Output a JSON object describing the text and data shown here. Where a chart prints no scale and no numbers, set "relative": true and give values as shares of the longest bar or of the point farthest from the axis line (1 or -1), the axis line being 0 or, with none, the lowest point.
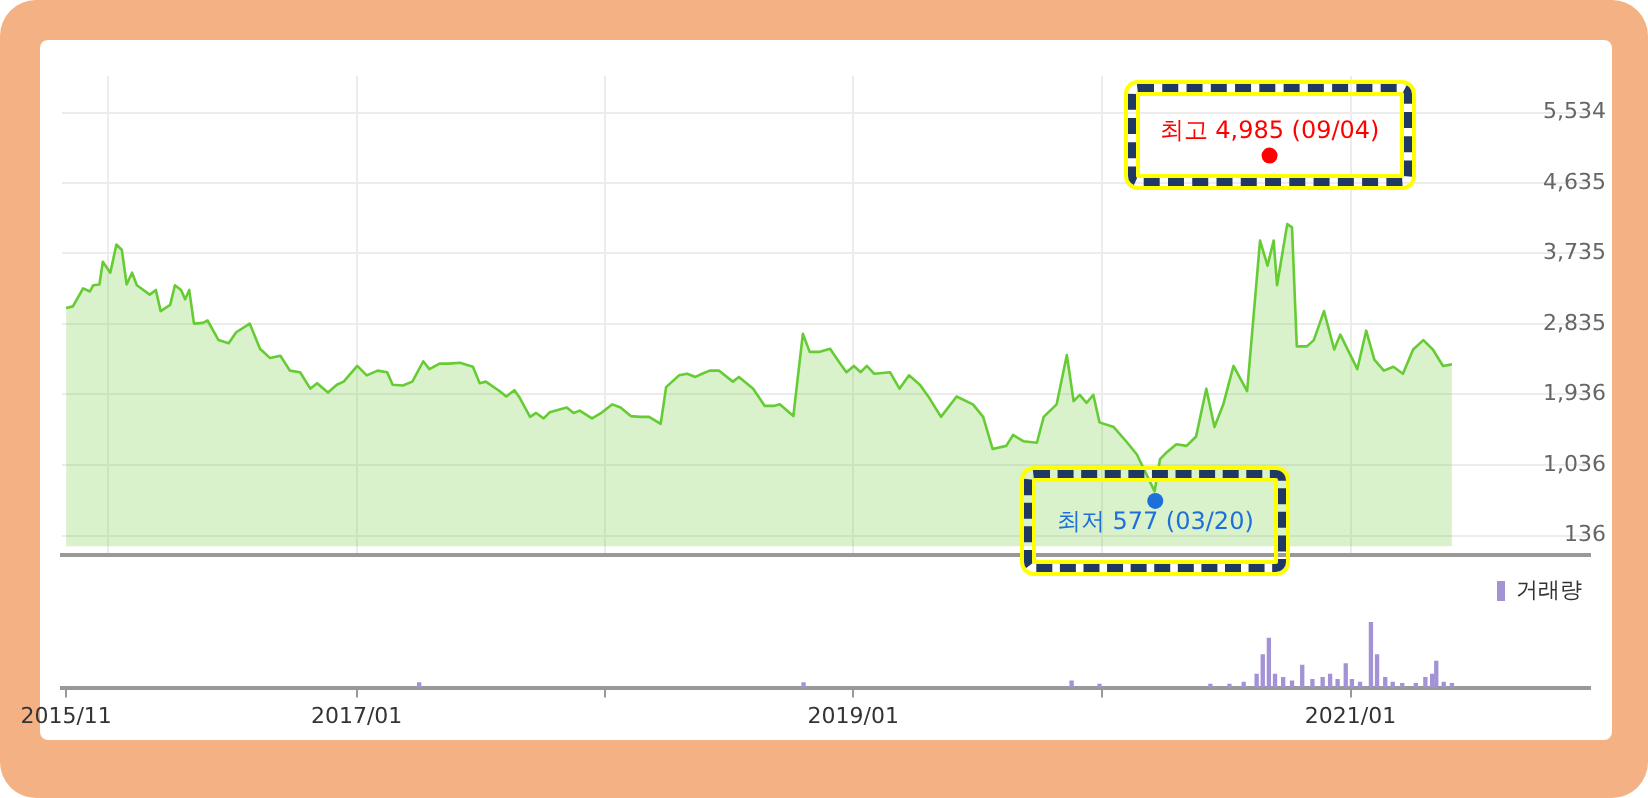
{
  "chart_data": [
    {
      "type": "area",
      "xlim": [
        "2015-10-26",
        "2021-12-19"
      ],
      "ylim": [
        -110,
        6000
      ],
      "xticks": [
        {
          "value": "2016-01",
          "label": null
        },
        {
          "value": "2017-01",
          "label": null
        },
        {
          "value": "2018-01",
          "label": null
        },
        {
          "value": "2019-01",
          "label": null
        },
        {
          "value": "2020-01",
          "label": null
        },
        {
          "value": "2021-01",
          "label": null
        }
      ],
      "yticks": [
        {
          "value": 136,
          "label": "136"
        },
        {
          "value": 1036,
          "label": "1,036"
        },
        {
          "value": 1936,
          "label": "1,936"
        },
        {
          "value": 2835,
          "label": "2,835"
        },
        {
          "value": 3735,
          "label": "3,735"
        },
        {
          "value": 4635,
          "label": "4,635"
        },
        {
          "value": 5534,
          "label": "5,534"
        }
      ],
      "tick_labels": "y",
      "grid": true,
      "legend": false,
      "marker": "none",
      "annotations": [
        {
          "text": "최고 4,985 (09/04)",
          "x": "2020-09-04",
          "y": 4985
        },
        {
          "text": "최저 577 (03/20)",
          "x": "2020-03-20",
          "y": 577
        }
      ],
      "series": [
        {
          "type": "scatter",
          "marker": "circle",
          "colors": [
            "#ff0000",
            "#1e6fd9"
          ],
          "x": [
            "2020-09-04",
            "2020-03-20"
          ],
          "values": [
            4985,
            577
          ]
        },
        {
          "color": "#66cc33",
          "x": [
            "2015-11-01",
            "2015-11-11",
            "2015-11-26",
            "2015-12-06",
            "2015-12-11",
            "2015-12-20",
            "2015-12-25",
            "2016-01-05",
            "2016-01-14",
            "2016-01-22",
            "2016-01-29",
            "2016-02-06",
            "2016-02-13",
            "2016-03-03",
            "2016-03-12",
            "2016-03-19",
            "2016-04-02",
            "2016-04-09",
            "2016-04-18",
            "2016-04-24",
            "2016-04-30",
            "2016-05-07",
            "2016-05-20",
            "2016-05-27",
            "2016-06-12",
            "2016-06-27",
            "2016-07-08",
            "2016-07-28",
            "2016-08-12",
            "2016-08-27",
            "2016-09-11",
            "2016-09-25",
            "2016-10-10",
            "2016-10-25",
            "2016-11-04",
            "2016-11-20",
            "2016-12-03",
            "2016-12-13",
            "2017-01-02",
            "2017-01-16",
            "2017-02-01",
            "2017-02-15",
            "2017-02-23",
            "2017-03-10",
            "2017-03-24",
            "2017-04-09",
            "2017-04-18",
            "2017-05-03",
            "2017-05-17",
            "2017-06-02",
            "2017-06-21",
            "2017-07-01",
            "2017-07-10",
            "2017-07-30",
            "2017-08-09",
            "2017-08-21",
            "2017-08-29",
            "2017-09-13",
            "2017-09-22",
            "2017-10-03",
            "2017-10-12",
            "2017-11-06",
            "2017-11-16",
            "2017-11-25",
            "2017-12-13",
            "2017-12-25",
            "2018-01-12",
            "2018-01-24",
            "2018-02-08",
            "2018-02-22",
            "2018-03-07",
            "2018-03-24",
            "2018-04-01",
            "2018-04-20",
            "2018-05-02",
            "2018-05-14",
            "2018-05-24",
            "2018-06-04",
            "2018-06-18",
            "2018-07-08",
            "2018-07-17",
            "2018-08-07",
            "2018-08-24",
            "2018-09-06",
            "2018-09-15",
            "2018-10-05",
            "2018-10-19",
            "2018-10-29",
            "2018-11-13",
            "2018-11-28",
            "2018-12-12",
            "2018-12-22",
            "2019-01-02",
            "2019-01-12",
            "2019-01-21",
            "2019-02-01",
            "2019-02-24",
            "2019-03-10",
            "2019-03-24",
            "2019-04-09",
            "2019-04-23",
            "2019-05-10",
            "2019-06-02",
            "2019-06-26",
            "2019-07-11",
            "2019-07-25",
            "2019-08-14",
            "2019-08-24",
            "2019-09-08",
            "2019-09-28",
            "2019-10-08",
            "2019-10-27",
            "2019-11-11",
            "2019-11-21",
            "2019-11-30",
            "2019-12-10",
            "2019-12-20",
            "2019-12-29",
            "2020-01-19",
            "2020-02-08",
            "2020-02-22",
            "2020-03-19",
            "2020-03-27",
            "2020-04-06",
            "2020-04-20",
            "2020-05-05",
            "2020-05-19",
            "2020-06-03",
            "2020-06-15",
            "2020-06-28",
            "2020-07-13",
            "2020-08-02",
            "2020-08-21",
            "2020-09-01",
            "2020-09-10",
            "2020-09-15",
            "2020-09-30",
            "2020-10-07",
            "2020-10-14",
            "2020-10-29",
            "2020-11-08",
            "2020-11-23",
            "2020-12-08",
            "2020-12-17",
            "2021-01-11",
            "2021-01-24",
            "2021-02-05",
            "2021-02-19",
            "2021-03-05",
            "2021-03-19",
            "2021-04-03",
            "2021-04-18",
            "2021-05-02",
            "2021-05-17",
            "2021-05-30"
          ],
          "values": [
            3040,
            3060,
            3290,
            3250,
            3330,
            3340,
            3630,
            3490,
            3850,
            3780,
            3340,
            3490,
            3330,
            3210,
            3270,
            3000,
            3080,
            3330,
            3270,
            3150,
            3270,
            2840,
            2850,
            2880,
            2630,
            2590,
            2730,
            2840,
            2520,
            2400,
            2430,
            2240,
            2220,
            2010,
            2080,
            1960,
            2060,
            2100,
            2300,
            2180,
            2240,
            2220,
            2060,
            2050,
            2100,
            2360,
            2260,
            2330,
            2330,
            2340,
            2290,
            2080,
            2100,
            1980,
            1910,
            1990,
            1890,
            1650,
            1700,
            1630,
            1710,
            1770,
            1700,
            1730,
            1630,
            1690,
            1810,
            1770,
            1660,
            1650,
            1650,
            1560,
            2030,
            2180,
            2200,
            2160,
            2200,
            2240,
            2240,
            2100,
            2160,
            2010,
            1790,
            1790,
            1810,
            1660,
            2710,
            2480,
            2480,
            2520,
            2340,
            2220,
            2300,
            2220,
            2300,
            2200,
            2220,
            2010,
            2180,
            2060,
            1890,
            1650,
            1910,
            1810,
            1650,
            1240,
            1280,
            1420,
            1340,
            1320,
            1650,
            1810,
            2440,
            1850,
            1930,
            1830,
            1930,
            1580,
            1520,
            1320,
            1170,
            700,
            1110,
            1200,
            1300,
            1280,
            1400,
            2010,
            1520,
            1810,
            2300,
            1980,
            3900,
            3580,
            3900,
            3330,
            4110,
            4070,
            2550,
            2550,
            2630,
            3000,
            2510,
            2700,
            2260,
            2750,
            2380,
            2240,
            2290,
            2200,
            2510,
            2630,
            2510,
            2300,
            2320
          ]
        }
      ]
    },
    {
      "type": "bar",
      "relative": true,
      "xlim": [
        "2015-10-26",
        "2021-12-19"
      ],
      "xticks": [
        {
          "value": "2015-11",
          "label": "2015/11"
        },
        {
          "value": "2017-01",
          "label": "2017/01"
        },
        {
          "value": "2018-01",
          "label": null
        },
        {
          "value": "2019-01",
          "label": "2019/01"
        },
        {
          "value": "2020-01",
          "label": null
        },
        {
          "value": "2021-01",
          "label": "2021/01"
        }
      ],
      "tick_labels": "x",
      "legend": "top right",
      "series": [
        {
          "name": "거래량",
          "color": "#a393d6",
          "x": [
            "2017-04-03",
            "2018-10-20",
            "2019-11-18",
            "2019-12-29",
            "2020-06-09",
            "2020-07-07",
            "2020-07-28",
            "2020-08-16",
            "2020-08-25",
            "2020-09-03",
            "2020-09-12",
            "2020-09-24",
            "2020-10-07",
            "2020-10-22",
            "2020-11-06",
            "2020-11-21",
            "2020-12-02",
            "2020-12-13",
            "2020-12-25",
            "2021-01-03",
            "2021-01-15",
            "2021-01-31",
            "2021-02-09",
            "2021-02-21",
            "2021-03-04",
            "2021-03-18",
            "2021-04-07",
            "2021-04-21",
            "2021-05-01",
            "2021-05-07",
            "2021-05-18",
            "2021-05-30"
          ],
          "values": [
            0.07,
            0.07,
            0.1,
            0.05,
            0.05,
            0.05,
            0.08,
            0.2,
            0.5,
            0.75,
            0.2,
            0.15,
            0.1,
            0.34,
            0.12,
            0.15,
            0.2,
            0.12,
            0.36,
            0.12,
            0.08,
            1,
            0.5,
            0.15,
            0.08,
            0.06,
            0.06,
            0.15,
            0.2,
            0.4,
            0.08,
            0.06
          ]
        }
      ]
    }
  ]
}
